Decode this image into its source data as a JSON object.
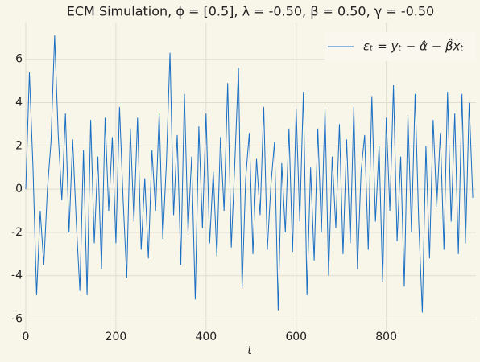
{
  "chart_data": {
    "type": "line",
    "title": "ECM Simulation, ϕ = [0.5], λ = -0.50, β = 0.50, γ = -0.50",
    "x_label": "t",
    "x": [
      0,
      8,
      16,
      24,
      32,
      40,
      48,
      56,
      64,
      72,
      80,
      88,
      96,
      104,
      112,
      120,
      128,
      136,
      144,
      152,
      160,
      168,
      176,
      184,
      192,
      200,
      208,
      216,
      224,
      232,
      240,
      248,
      256,
      264,
      272,
      280,
      288,
      296,
      304,
      312,
      320,
      328,
      336,
      344,
      352,
      360,
      368,
      376,
      384,
      392,
      400,
      408,
      416,
      424,
      432,
      440,
      448,
      456,
      464,
      472,
      480,
      488,
      496,
      504,
      512,
      520,
      528,
      536,
      544,
      552,
      560,
      568,
      576,
      584,
      592,
      600,
      608,
      616,
      624,
      632,
      640,
      648,
      656,
      664,
      672,
      680,
      688,
      696,
      704,
      712,
      720,
      728,
      736,
      744,
      752,
      760,
      768,
      776,
      784,
      792,
      800,
      808,
      816,
      824,
      832,
      840,
      848,
      856,
      864,
      872,
      880,
      888,
      896,
      904,
      912,
      920,
      928,
      936,
      944,
      952,
      960,
      968,
      976,
      984,
      992
    ],
    "series": [
      {
        "name": "εₜ = yₜ − α̂ − β̂xₜ",
        "color": "#1a6fc4",
        "values": [
          0,
          5.4,
          1.0,
          -4.9,
          -1,
          -3.5,
          0,
          2.2,
          7.1,
          2.5,
          -0.5,
          3.5,
          -2,
          2.3,
          -1.5,
          -4.7,
          1.8,
          -4.9,
          3.2,
          -2.5,
          1.5,
          -3.7,
          3.3,
          -1,
          2.4,
          -2.5,
          3.8,
          -0.5,
          -4.1,
          2.8,
          -1.5,
          3.3,
          -2.8,
          0.5,
          -3.2,
          1.8,
          -1,
          3.5,
          -2.3,
          1.2,
          6.3,
          -1.2,
          2.5,
          -3.5,
          4.4,
          -2,
          1.5,
          -5.1,
          2.9,
          -1.8,
          3.5,
          -2.5,
          0.8,
          -3.1,
          2.4,
          -1,
          4.9,
          -2.7,
          1.3,
          5.6,
          -4.6,
          0.5,
          2.6,
          -3,
          1.4,
          -1.2,
          3.8,
          -2.8,
          0.2,
          2.2,
          -5.6,
          1.2,
          -2,
          2.8,
          -2.9,
          3.7,
          -1.5,
          4.5,
          -4.9,
          1,
          -3.3,
          2.8,
          -2,
          3.7,
          -4,
          1.5,
          -1.8,
          3,
          -3,
          2.3,
          -2.5,
          3.8,
          -3.7,
          0.8,
          2.5,
          -2.8,
          4.3,
          -1.5,
          2,
          -4.3,
          3.3,
          -1,
          4.8,
          -2.4,
          1.5,
          -4.5,
          3.4,
          -2,
          4.4,
          -1.5,
          -5.7,
          2,
          -3.2,
          3.2,
          -0.8,
          2.6,
          -2.8,
          4.5,
          -1.5,
          3.5,
          -3,
          4.4,
          -2.5,
          4,
          -0.4
        ]
      }
    ],
    "xlim": [
      0,
      999
    ],
    "ylim": [
      -6.5,
      7.7
    ],
    "xticks": [
      0,
      200,
      400,
      600,
      800
    ],
    "yticks": [
      -6,
      -4,
      -2,
      0,
      2,
      4,
      6
    ],
    "grid": true,
    "legend": "upper right"
  }
}
